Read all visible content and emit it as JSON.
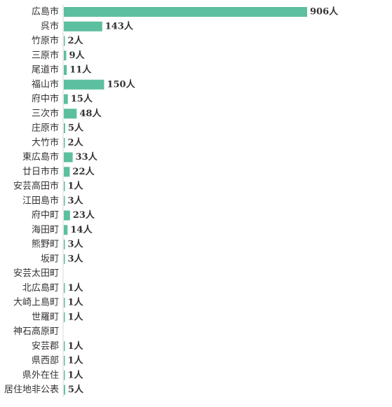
{
  "chart_data": {
    "type": "bar",
    "orientation": "horizontal",
    "categories": [
      "広島市",
      "呉市",
      "竹原市",
      "三原市",
      "尾道市",
      "福山市",
      "府中市",
      "三次市",
      "庄原市",
      "大竹市",
      "東広島市",
      "廿日市市",
      "安芸高田市",
      "江田島市",
      "府中町",
      "海田町",
      "熊野町",
      "坂町",
      "安芸太田町",
      "北広島町",
      "大崎上島町",
      "世羅町",
      "神石高原町",
      "安芸郡",
      "県西部",
      "県外在住",
      "居住地非公表"
    ],
    "values": [
      906,
      143,
      2,
      9,
      11,
      150,
      15,
      48,
      5,
      2,
      33,
      22,
      1,
      3,
      23,
      14,
      3,
      3,
      0,
      1,
      1,
      1,
      0,
      1,
      1,
      1,
      5
    ],
    "value_labels": [
      "906人",
      "143人",
      "2人",
      "9人",
      "11人",
      "150人",
      "15人",
      "48人",
      "5人",
      "2人",
      "33人",
      "22人",
      "1人",
      "3人",
      "23人",
      "14人",
      "3人",
      "3人",
      "",
      "1人",
      "1人",
      "1人",
      "",
      "1人",
      "1人",
      "1人",
      "5人"
    ],
    "title": "",
    "xlabel": "",
    "ylabel": "",
    "xlim": [
      0,
      906
    ],
    "grid": false,
    "legend": "none",
    "bar_color": "#5cbf9f"
  }
}
